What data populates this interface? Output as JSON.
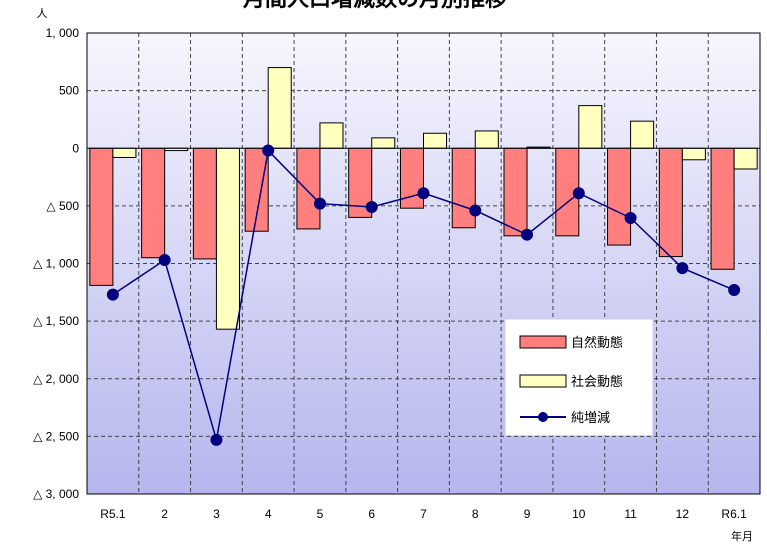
{
  "chart_data": {
    "type": "bar",
    "title": "月間人口増減数の月別推移",
    "ylabel": "人",
    "xlabel": "年月",
    "categories": [
      "R5.1",
      "2",
      "3",
      "4",
      "5",
      "6",
      "7",
      "8",
      "9",
      "10",
      "11",
      "12",
      "R6.1"
    ],
    "ylim": [
      -3000,
      1000
    ],
    "yticks": [
      1000,
      500,
      0,
      -500,
      -1000,
      -1500,
      -2000,
      -2500,
      -3000
    ],
    "ytick_labels": [
      "1, 000",
      "500",
      "0",
      "△ 500",
      "△ 1, 000",
      "△ 1, 500",
      "△ 2, 000",
      "△ 2, 500",
      "△ 3, 000"
    ],
    "series": [
      {
        "name": "自然動態",
        "type": "bar",
        "color": "#ff7f7f",
        "values": [
          -1190,
          -950,
          -960,
          -720,
          -700,
          -600,
          -520,
          -690,
          -760,
          -760,
          -840,
          -940,
          -1050
        ]
      },
      {
        "name": "社会動態",
        "type": "bar",
        "color": "#ffffc0",
        "values": [
          -80,
          -20,
          -1570,
          700,
          220,
          90,
          130,
          150,
          10,
          370,
          235,
          -100,
          -180
        ]
      },
      {
        "name": "純増減",
        "type": "line",
        "color": "#000080",
        "values": [
          -1270,
          -970,
          -2530,
          -20,
          -480,
          -510,
          -390,
          -540,
          -750,
          -390,
          -605,
          -1040,
          -1230
        ]
      }
    ],
    "grid": true,
    "legend": "bottom-right"
  }
}
